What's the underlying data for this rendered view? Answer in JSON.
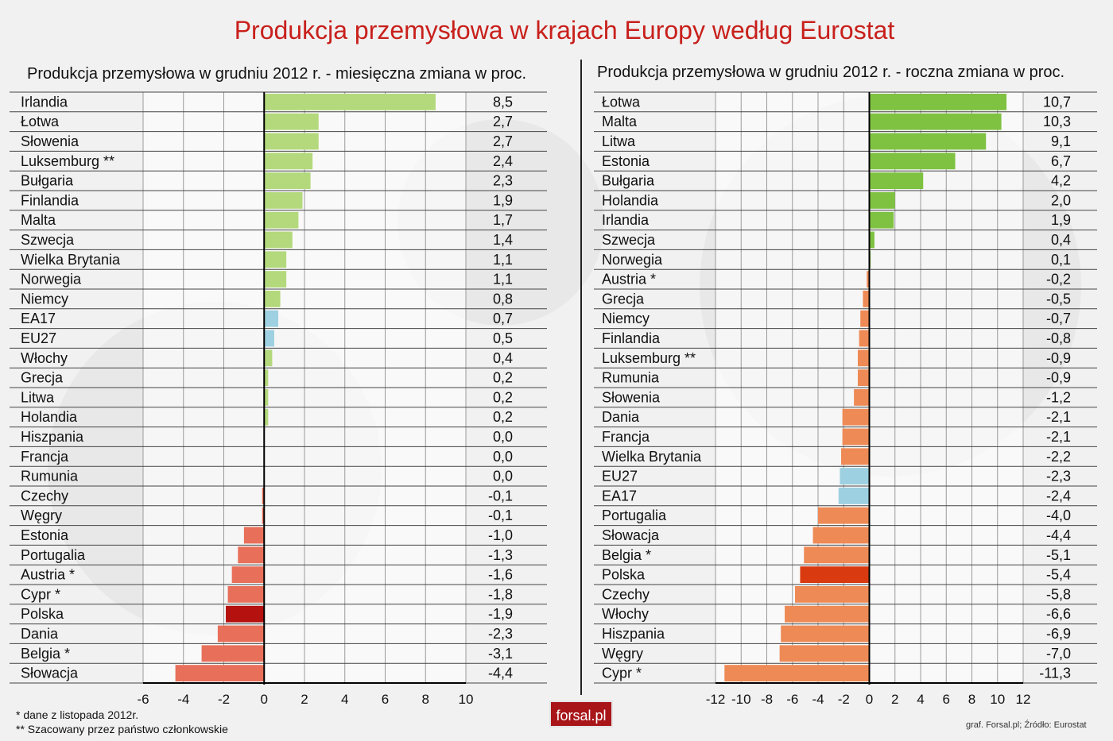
{
  "title": "Produkcja przemysłowa w krajach Europy według Eurostat",
  "chart_data": [
    {
      "type": "bar",
      "orientation": "horizontal",
      "title": "Produkcja przemysłowa w grudniu 2012 r. - miesięczna zmiana w proc.",
      "categories": [
        "Irlandia",
        "Łotwa",
        "Słowenia",
        "Luksemburg **",
        "Bułgaria",
        "Finlandia",
        "Malta",
        "Szwecja",
        "Wielka Brytania",
        "Norwegia",
        "Niemcy",
        "EA17",
        "EU27",
        "Włochy",
        "Grecja",
        "Litwa",
        "Holandia",
        "Hiszpania",
        "Francja",
        "Rumunia",
        "Czechy",
        "Węgry",
        "Estonia",
        "Portugalia",
        "Austria *",
        "Cypr *",
        "Polska",
        "Dania",
        "Belgia *",
        "Słowacja"
      ],
      "values": [
        8.5,
        2.7,
        2.7,
        2.4,
        2.3,
        1.9,
        1.7,
        1.4,
        1.1,
        1.1,
        0.8,
        0.7,
        0.5,
        0.4,
        0.2,
        0.2,
        0.2,
        0.0,
        0.0,
        0.0,
        -0.1,
        -0.1,
        -1.0,
        -1.3,
        -1.6,
        -1.8,
        -1.9,
        -2.3,
        -3.1,
        -4.4
      ],
      "value_labels": [
        "8,5",
        "2,7",
        "2,7",
        "2,4",
        "2,3",
        "1,9",
        "1,7",
        "1,4",
        "1,1",
        "1,1",
        "0,8",
        "0,7",
        "0,5",
        "0,4",
        "0,2",
        "0,2",
        "0,2",
        "0,0",
        "0,0",
        "0,0",
        "-0,1",
        "-0,1",
        "-1,0",
        "-1,3",
        "-1,6",
        "-1,8",
        "-1,9",
        "-2,3",
        "-3,1",
        "-4,4"
      ],
      "xlim": [
        -6,
        10
      ],
      "ticks": [
        -6,
        -4,
        -2,
        0,
        2,
        4,
        6,
        8,
        10
      ],
      "highlight": {
        "EA17": "aggregate",
        "EU27": "aggregate",
        "Polska": "poland"
      },
      "colors": {
        "positive": "#b3d97c",
        "negative": "#e8705a",
        "aggregate": "#9dd0e0",
        "poland": "#b5110f"
      },
      "grid": true
    },
    {
      "type": "bar",
      "orientation": "horizontal",
      "title": "Produkcja przemysłowa w grudniu 2012 r. - roczna zmiana w proc.",
      "categories": [
        "Łotwa",
        "Malta",
        "Litwa",
        "Estonia",
        "Bułgaria",
        "Holandia",
        "Irlandia",
        "Szwecja",
        "Norwegia",
        "Austria *",
        "Grecja",
        "Niemcy",
        "Finlandia",
        "Luksemburg **",
        "Rumunia",
        "Słowenia",
        "Dania",
        "Francja",
        "Wielka Brytania",
        "EU27",
        "EA17",
        "Portugalia",
        "Słowacja",
        "Belgia *",
        "Polska",
        "Czechy",
        "Włochy",
        "Hiszpania",
        "Węgry",
        "Cypr *"
      ],
      "values": [
        10.7,
        10.3,
        9.1,
        6.7,
        4.2,
        2.0,
        1.9,
        0.4,
        0.1,
        -0.2,
        -0.5,
        -0.7,
        -0.8,
        -0.9,
        -0.9,
        -1.2,
        -2.1,
        -2.1,
        -2.2,
        -2.3,
        -2.4,
        -4.0,
        -4.4,
        -5.1,
        -5.4,
        -5.8,
        -6.6,
        -6.9,
        -7.0,
        -11.3
      ],
      "value_labels": [
        "10,7",
        "10,3",
        "9,1",
        "6,7",
        "4,2",
        "2,0",
        "1,9",
        "0,4",
        "0,1",
        "-0,2",
        "-0,5",
        "-0,7",
        "-0,8",
        "-0,9",
        "-0,9",
        "-1,2",
        "-2,1",
        "-2,1",
        "-2,2",
        "-2,3",
        "-2,4",
        "-4,0",
        "-4,4",
        "-5,1",
        "-5,4",
        "-5,8",
        "-6,6",
        "-6,9",
        "-7,0",
        "-11,3"
      ],
      "xlim": [
        -12,
        12
      ],
      "ticks": [
        -12,
        -10,
        -8,
        -6,
        -4,
        -2,
        0,
        2,
        4,
        6,
        8,
        10,
        12
      ],
      "highlight": {
        "EU27": "aggregate",
        "EA17": "aggregate",
        "Polska": "poland"
      },
      "colors": {
        "positive": "#7fc242",
        "negative": "#ee8a55",
        "aggregate": "#9dd0e0",
        "poland": "#d93a10"
      },
      "grid": true
    }
  ],
  "footnotes": [
    "* dane z listopada 2012r.",
    "** Szacowany przez państwo członkowskie"
  ],
  "logo_text": "forsal.pl",
  "source": "graf. Forsal.pl; Źródło: Eurostat"
}
